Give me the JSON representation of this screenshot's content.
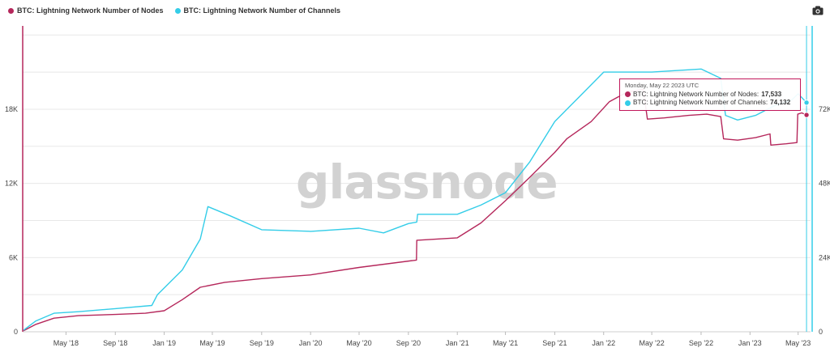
{
  "legend": [
    {
      "label": "BTC: Lightning Network Number of Nodes",
      "color": "#b5275b"
    },
    {
      "label": "BTC: Lightning Network Number of Channels",
      "color": "#34cde8"
    }
  ],
  "watermark": "glassnode",
  "tooltip": {
    "date": "Monday, May 22 2023 UTC",
    "nodes_label": "BTC: Lightning Network Number of Nodes: ",
    "nodes_value": "17,533",
    "channels_label": "BTC: Lightning Network Number of Channels: ",
    "channels_value": "74,132"
  },
  "icons": {
    "camera": "camera-icon"
  },
  "chart_data": {
    "type": "line",
    "x_tick_labels": [
      "May '18",
      "Sep '18",
      "Jan '19",
      "May '19",
      "Sep '19",
      "Jan '20",
      "May '20",
      "Sep '20",
      "Jan '21",
      "May '21",
      "Sep '21",
      "Jan '22",
      "May '22",
      "Sep '22",
      "Jan '23",
      "May '23"
    ],
    "x_range": [
      "2018-01-13",
      "2023-06-01"
    ],
    "y_left": {
      "ticks": [
        "0",
        "6K",
        "12K",
        "18K"
      ],
      "range": [
        0,
        25000
      ]
    },
    "y_right": {
      "ticks": [
        "0",
        "24K",
        "48K",
        "72K"
      ],
      "range": [
        0,
        100000
      ]
    },
    "grid": true,
    "legend_position": "top-left",
    "series": [
      {
        "name": "BTC: Lightning Network Number of Nodes",
        "axis": "left",
        "color": "#b5275b",
        "points": [
          [
            "2018-01-15",
            80
          ],
          [
            "2018-02-15",
            600
          ],
          [
            "2018-04-01",
            1100
          ],
          [
            "2018-06-01",
            1300
          ],
          [
            "2018-09-01",
            1400
          ],
          [
            "2018-11-15",
            1500
          ],
          [
            "2019-01-01",
            1700
          ],
          [
            "2019-02-15",
            2600
          ],
          [
            "2019-04-01",
            3600
          ],
          [
            "2019-06-01",
            4000
          ],
          [
            "2019-09-01",
            4300
          ],
          [
            "2020-01-01",
            4600
          ],
          [
            "2020-05-01",
            5200
          ],
          [
            "2020-09-21",
            5800
          ],
          [
            "2020-09-22",
            7400
          ],
          [
            "2021-01-01",
            7600
          ],
          [
            "2021-03-01",
            8800
          ],
          [
            "2021-05-01",
            10600
          ],
          [
            "2021-07-01",
            12500
          ],
          [
            "2021-09-01",
            14500
          ],
          [
            "2021-10-01",
            15600
          ],
          [
            "2021-12-01",
            17000
          ],
          [
            "2022-01-15",
            18600
          ],
          [
            "2022-03-01",
            19400
          ],
          [
            "2022-04-10",
            19600
          ],
          [
            "2022-04-20",
            17200
          ],
          [
            "2022-06-01",
            17300
          ],
          [
            "2022-08-01",
            17500
          ],
          [
            "2022-09-15",
            17600
          ],
          [
            "2022-10-20",
            17400
          ],
          [
            "2022-10-27",
            15600
          ],
          [
            "2022-12-01",
            15500
          ],
          [
            "2023-01-15",
            15700
          ],
          [
            "2023-02-20",
            16000
          ],
          [
            "2023-02-22",
            15100
          ],
          [
            "2023-04-01",
            15200
          ],
          [
            "2023-04-28",
            15300
          ],
          [
            "2023-04-30",
            17600
          ],
          [
            "2023-05-10",
            17700
          ],
          [
            "2023-05-22",
            17533
          ]
        ]
      },
      {
        "name": "BTC: Lightning Network Number of Channels",
        "axis": "right",
        "color": "#34cde8",
        "points": [
          [
            "2018-01-15",
            500
          ],
          [
            "2018-02-15",
            3500
          ],
          [
            "2018-04-01",
            6000
          ],
          [
            "2018-06-01",
            6500
          ],
          [
            "2018-09-01",
            7500
          ],
          [
            "2018-12-01",
            8500
          ],
          [
            "2018-12-15",
            12000
          ],
          [
            "2019-02-15",
            20000
          ],
          [
            "2019-04-01",
            30000
          ],
          [
            "2019-04-20",
            40500
          ],
          [
            "2019-06-15",
            37500
          ],
          [
            "2019-09-01",
            33000
          ],
          [
            "2020-01-01",
            32500
          ],
          [
            "2020-05-01",
            33500
          ],
          [
            "2020-07-01",
            32000
          ],
          [
            "2020-09-01",
            35000
          ],
          [
            "2020-09-22",
            35500
          ],
          [
            "2020-09-24",
            38000
          ],
          [
            "2021-01-01",
            38000
          ],
          [
            "2021-03-01",
            41000
          ],
          [
            "2021-05-01",
            45000
          ],
          [
            "2021-07-01",
            55000
          ],
          [
            "2021-09-01",
            68000
          ],
          [
            "2021-11-01",
            76000
          ],
          [
            "2022-01-01",
            84000
          ],
          [
            "2022-03-01",
            84000
          ],
          [
            "2022-05-01",
            84000
          ],
          [
            "2022-07-01",
            84500
          ],
          [
            "2022-09-01",
            85000
          ],
          [
            "2022-10-20",
            82000
          ],
          [
            "2022-11-01",
            70000
          ],
          [
            "2022-12-01",
            68500
          ],
          [
            "2023-01-15",
            70000
          ],
          [
            "2023-03-01",
            73000
          ],
          [
            "2023-04-15",
            75000
          ],
          [
            "2023-05-01",
            77000
          ],
          [
            "2023-05-22",
            74132
          ]
        ]
      }
    ],
    "tooltip_point": {
      "date": "2023-05-22",
      "nodes": 17533,
      "channels": 74132
    }
  }
}
